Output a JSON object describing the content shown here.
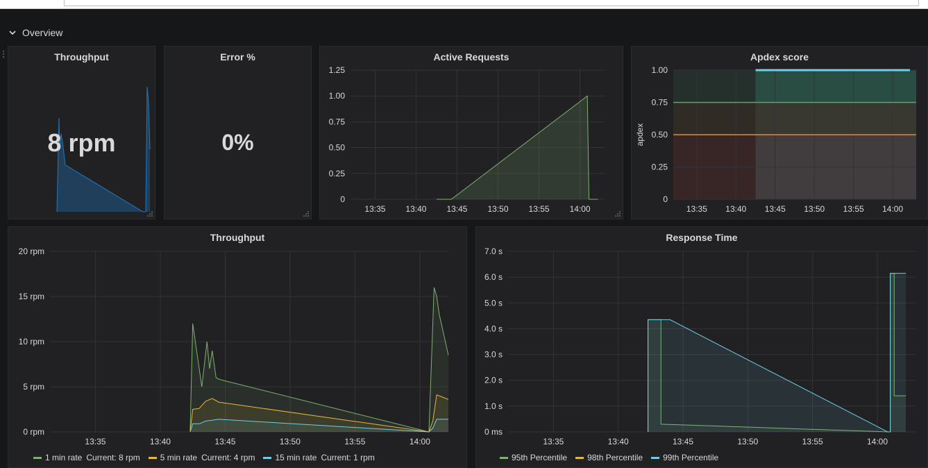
{
  "row": {
    "title": "Overview"
  },
  "panels": {
    "throughput_stat": {
      "title": "Throughput",
      "value": "8 rpm"
    },
    "error_stat": {
      "title": "Error %",
      "value": "0%"
    },
    "active_requests": {
      "title": "Active Requests"
    },
    "apdex": {
      "title": "Apdex score",
      "ylabel": "apdex"
    },
    "throughput_graph": {
      "title": "Throughput",
      "legend": [
        {
          "label": "1 min rate",
          "current": "Current: 8 rpm",
          "color": "#7eb26d"
        },
        {
          "label": "5 min rate",
          "current": "Current: 4 rpm",
          "color": "#eab839"
        },
        {
          "label": "15 min rate",
          "current": "Current: 1 rpm",
          "color": "#6ed0e0"
        }
      ]
    },
    "response_time": {
      "title": "Response Time",
      "legend": [
        {
          "label": "95th Percentile",
          "color": "#7eb26d"
        },
        {
          "label": "98th Percentile",
          "color": "#eab839"
        },
        {
          "label": "99th Percentile",
          "color": "#6ed0e0"
        }
      ]
    }
  },
  "chart_data": [
    {
      "id": "sparkline",
      "type": "area",
      "x": [
        "13:42",
        "13:42.5",
        "13:43",
        "13:43.5",
        "13:44",
        "13:45",
        "14:00",
        "14:00.5",
        "14:01",
        "14:01.5",
        "14:02"
      ],
      "series": [
        {
          "values": [
            0,
            12,
            8,
            10,
            9,
            6,
            0,
            0,
            16,
            14,
            8
          ]
        }
      ],
      "color": "#1f78c1"
    },
    {
      "id": "active_requests",
      "type": "area",
      "x_ticks": [
        "13:35",
        "13:40",
        "13:45",
        "13:50",
        "13:55",
        "14:00"
      ],
      "y_ticks": [
        "0",
        "0.25",
        "0.50",
        "0.75",
        "1.00",
        "1.25"
      ],
      "ylim": [
        0,
        1.25
      ],
      "x_range": [
        "13:32",
        "14:03"
      ],
      "series": [
        {
          "x": [
            "13:42.5",
            "13:44.3",
            "14:00.9",
            "14:01.1",
            "14:02.2"
          ],
          "values": [
            0,
            0,
            1,
            0,
            0
          ],
          "color": "#7eb26d"
        }
      ]
    },
    {
      "id": "apdex",
      "type": "line",
      "x_ticks": [
        "13:35",
        "13:40",
        "13:45",
        "13:50",
        "13:55",
        "14:00"
      ],
      "y_ticks": [
        "0",
        "0.25",
        "0.50",
        "0.75",
        "1.00"
      ],
      "ylim": [
        0,
        1
      ],
      "x_range": [
        "13:32",
        "14:03"
      ],
      "thresholds": [
        {
          "value": 0.5,
          "color": "#e58a2e"
        },
        {
          "value": 0.75,
          "color": "#4fae6b"
        }
      ],
      "series": [
        {
          "x": [
            "13:42.5",
            "14:02.2"
          ],
          "values": [
            1,
            1
          ],
          "color": "#6ed0e0"
        }
      ]
    },
    {
      "id": "throughput",
      "type": "area",
      "x_ticks": [
        "13:35",
        "13:40",
        "13:45",
        "13:50",
        "13:55",
        "14:00"
      ],
      "y_ticks": [
        "0 rpm",
        "5 rpm",
        "10 rpm",
        "15 rpm",
        "20 rpm"
      ],
      "ylim": [
        0,
        20
      ],
      "x_range": [
        "13:31.5",
        "14:02.2"
      ],
      "series": [
        {
          "name": "1 min rate",
          "color": "#7eb26d",
          "x": [
            "13:42.3",
            "13:42.5",
            "13:43.2",
            "13:43.6",
            "13:43.8",
            "13:44",
            "13:44.3",
            "13:44.6",
            "14:00.7",
            "14:00.9",
            "14:01.1",
            "14:01.3",
            "14:01.5",
            "14:02.2"
          ],
          "values": [
            0,
            12,
            5,
            10,
            7,
            9,
            6,
            5.8,
            0,
            8,
            16,
            15,
            13,
            8.5
          ]
        },
        {
          "name": "5 min rate",
          "color": "#eab839",
          "x": [
            "13:42.3",
            "13:42.5",
            "13:43",
            "13:43.5",
            "13:44",
            "13:44.5",
            "14:00.7",
            "14:01",
            "14:01.3",
            "14:02.2"
          ],
          "values": [
            0,
            2.5,
            2.6,
            3.4,
            3.7,
            3.3,
            0,
            1.2,
            4.1,
            3.6
          ]
        },
        {
          "name": "15 min rate",
          "color": "#6ed0e0",
          "x": [
            "13:42.3",
            "13:42.5",
            "13:43",
            "13:43.5",
            "13:44",
            "13:44.5",
            "14:00.7",
            "14:01",
            "14:01.3",
            "14:02.2"
          ],
          "values": [
            0,
            0.9,
            0.9,
            1.2,
            1.3,
            1.4,
            0,
            0.4,
            1.4,
            1.4
          ]
        }
      ]
    },
    {
      "id": "response_time",
      "type": "area",
      "x_ticks": [
        "13:35",
        "13:40",
        "13:45",
        "13:50",
        "13:55",
        "14:00"
      ],
      "y_ticks": [
        "0 ms",
        "1.0 s",
        "2.0 s",
        "3.0 s",
        "4.0 s",
        "5.0 s",
        "6.0 s",
        "7.0 s"
      ],
      "ylim": [
        0,
        7
      ],
      "x_range": [
        "13:31.5",
        "14:03"
      ],
      "series": [
        {
          "name": "95th Percentile",
          "color": "#7eb26d",
          "x": [
            "13:42.3",
            "13:42.3",
            "13:43.3",
            "13:43.3",
            "14:00.9",
            "14:01",
            "14:01",
            "14:01.3",
            "14:01.3",
            "14:02.2"
          ],
          "values": [
            0,
            4.35,
            4.35,
            0.3,
            0,
            0,
            6.15,
            6.15,
            1.4,
            1.4
          ]
        },
        {
          "name": "99th Percentile",
          "color": "#6ed0e0",
          "x": [
            "13:42.3",
            "13:42.3",
            "13:44",
            "14:00.8",
            "14:01",
            "14:01",
            "14:02.2"
          ],
          "values": [
            0,
            4.35,
            4.35,
            0,
            0,
            6.15,
            6.15
          ]
        }
      ]
    }
  ]
}
